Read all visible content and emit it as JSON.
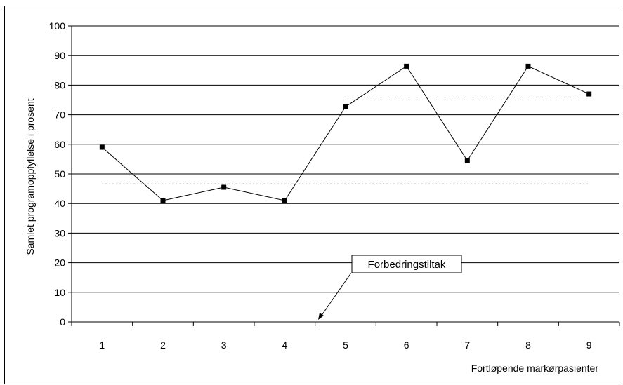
{
  "chart_data": {
    "type": "line",
    "title": "",
    "xlabel": "Fortløpende markørpasienter",
    "ylabel": "Samlet programoppfyllelse i prosent",
    "categories": [
      "1",
      "2",
      "3",
      "4",
      "5",
      "6",
      "7",
      "8",
      "9"
    ],
    "series": [
      {
        "values": [
          59,
          41,
          45.5,
          41,
          72.7,
          86.4,
          54.5,
          86.4,
          77
        ]
      }
    ],
    "reference_lines": [
      {
        "y": 46.6,
        "x_from": "1",
        "x_to": "9",
        "style": "dotted"
      },
      {
        "y": 75,
        "x_from": "5",
        "x_to": "9",
        "style": "dotted"
      }
    ],
    "ylim": [
      0,
      100
    ],
    "yticks": [
      0,
      10,
      20,
      30,
      40,
      50,
      60,
      70,
      80,
      90,
      100
    ],
    "grid": true,
    "annotation": {
      "text": "Forbedringstiltak",
      "arrow_to_x": "between 4 and 5",
      "arrow_to_y": 0
    },
    "colors": {
      "line": "#000000",
      "marker": "#000000",
      "grid": "#000000",
      "background": "#ffffff"
    }
  }
}
